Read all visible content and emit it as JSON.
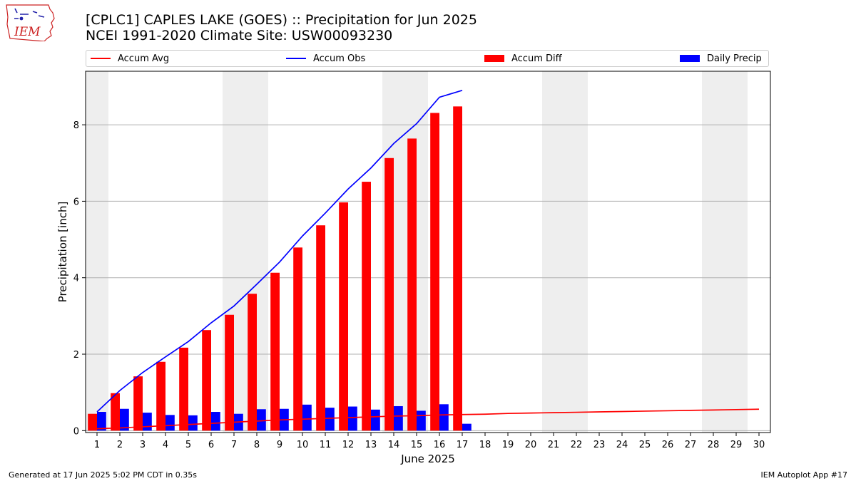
{
  "header": {
    "title": "[CPLC1] CAPLES LAKE (GOES) :: Precipitation for Jun 2025",
    "subtitle": "NCEI 1991-2020 Climate Site: USW00093230"
  },
  "logo": {
    "text": "IEM",
    "color": "#cc2222"
  },
  "footer": {
    "left": "Generated at 17 Jun 2025 5:02 PM CDT in 0.35s",
    "right": "IEM Autoplot App #17"
  },
  "chart_data": {
    "type": "bar",
    "xlabel": "June 2025",
    "ylabel": "Precipitation [inch]",
    "xlim": [
      0.5,
      30.5
    ],
    "ylim": [
      -0.05,
      9.4
    ],
    "yticks": [
      0,
      2,
      4,
      6,
      8
    ],
    "x": [
      1,
      2,
      3,
      4,
      5,
      6,
      7,
      8,
      9,
      10,
      11,
      12,
      13,
      14,
      15,
      16,
      17,
      18,
      19,
      20,
      21,
      22,
      23,
      24,
      25,
      26,
      27,
      28,
      29,
      30
    ],
    "grid": "y",
    "legend_position": "top",
    "weekend_shading": [
      [
        0.5,
        1.5
      ],
      [
        6.5,
        8.5
      ],
      [
        13.5,
        15.5
      ],
      [
        20.5,
        22.5
      ],
      [
        27.5,
        29.5
      ]
    ],
    "series": [
      {
        "name": "Accum Avg",
        "kind": "line",
        "color": "#ff0000",
        "x": [
          1,
          2,
          3,
          4,
          5,
          6,
          7,
          8,
          9,
          10,
          11,
          12,
          13,
          14,
          15,
          16,
          17,
          18,
          19,
          20,
          21,
          22,
          23,
          24,
          25,
          26,
          27,
          28,
          29,
          30
        ],
        "values": [
          0.05,
          0.07,
          0.1,
          0.13,
          0.16,
          0.19,
          0.22,
          0.25,
          0.28,
          0.3,
          0.32,
          0.34,
          0.36,
          0.38,
          0.39,
          0.41,
          0.42,
          0.43,
          0.45,
          0.46,
          0.47,
          0.48,
          0.49,
          0.5,
          0.51,
          0.52,
          0.53,
          0.54,
          0.55,
          0.56
        ]
      },
      {
        "name": "Accum Obs",
        "kind": "line",
        "color": "#0000ff",
        "x": [
          1,
          2,
          3,
          4,
          5,
          6,
          7,
          8,
          9,
          10,
          11,
          12,
          13,
          14,
          15,
          16,
          17
        ],
        "values": [
          0.49,
          1.05,
          1.52,
          1.93,
          2.33,
          2.82,
          3.26,
          3.83,
          4.41,
          5.09,
          5.69,
          6.32,
          6.87,
          7.51,
          8.03,
          8.72,
          8.9
        ]
      },
      {
        "name": "Accum Diff",
        "kind": "bar",
        "color": "#ff0000",
        "x": [
          1,
          2,
          3,
          4,
          5,
          6,
          7,
          8,
          9,
          10,
          11,
          12,
          13,
          14,
          15,
          16,
          17
        ],
        "values": [
          0.44,
          0.98,
          1.42,
          1.8,
          2.17,
          2.63,
          3.03,
          3.58,
          4.13,
          4.79,
          5.37,
          5.97,
          6.51,
          7.13,
          7.64,
          8.31,
          8.48
        ]
      },
      {
        "name": "Daily Precip",
        "kind": "bar",
        "color": "#0000ff",
        "x": [
          1,
          2,
          3,
          4,
          5,
          6,
          7,
          8,
          9,
          10,
          11,
          12,
          13,
          14,
          15,
          16,
          17
        ],
        "values": [
          0.49,
          0.57,
          0.47,
          0.41,
          0.4,
          0.49,
          0.44,
          0.56,
          0.57,
          0.68,
          0.6,
          0.63,
          0.55,
          0.64,
          0.52,
          0.69,
          0.18
        ]
      }
    ]
  }
}
